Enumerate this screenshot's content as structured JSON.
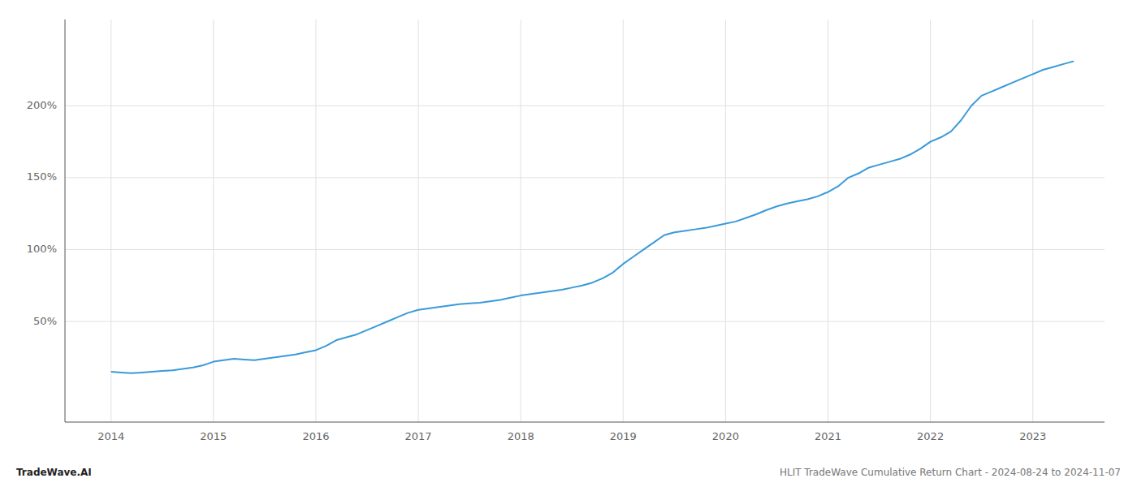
{
  "chart_data": {
    "type": "line",
    "title": "HLIT TradeWave Cumulative Return Chart - 2024-08-24 to 2024-11-07",
    "annotations": [
      "TradeWave.AI"
    ],
    "color": "#3a9ad9",
    "grid": true,
    "xlim": [
      2013.55,
      2023.7
    ],
    "xticks": [
      2014,
      2015,
      2016,
      2017,
      2018,
      2019,
      2020,
      2021,
      2022,
      2023
    ],
    "ylim": [
      -20,
      260
    ],
    "yticks": [
      {
        "value": 50,
        "label": "50%"
      },
      {
        "value": 100,
        "label": "100%"
      },
      {
        "value": 150,
        "label": "150%"
      },
      {
        "value": 200,
        "label": "200%"
      }
    ],
    "x": [
      2014.0,
      2014.1,
      2014.2,
      2014.3,
      2014.4,
      2014.5,
      2014.6,
      2014.7,
      2014.8,
      2014.9,
      2015.0,
      2015.1,
      2015.2,
      2015.3,
      2015.4,
      2015.5,
      2015.6,
      2015.7,
      2015.8,
      2015.9,
      2016.0,
      2016.1,
      2016.2,
      2016.3,
      2016.4,
      2016.5,
      2016.6,
      2016.7,
      2016.8,
      2016.9,
      2017.0,
      2017.1,
      2017.2,
      2017.3,
      2017.4,
      2017.5,
      2017.6,
      2017.7,
      2017.8,
      2017.9,
      2018.0,
      2018.1,
      2018.2,
      2018.3,
      2018.4,
      2018.5,
      2018.6,
      2018.7,
      2018.8,
      2018.9,
      2019.0,
      2019.1,
      2019.2,
      2019.3,
      2019.4,
      2019.5,
      2019.6,
      2019.7,
      2019.8,
      2019.9,
      2020.0,
      2020.1,
      2020.2,
      2020.3,
      2020.4,
      2020.5,
      2020.6,
      2020.7,
      2020.8,
      2020.9,
      2021.0,
      2021.1,
      2021.2,
      2021.3,
      2021.4,
      2021.5,
      2021.6,
      2021.7,
      2021.8,
      2021.9,
      2022.0,
      2022.1,
      2022.2,
      2022.3,
      2022.4,
      2022.5,
      2022.6,
      2022.7,
      2022.8,
      2022.9,
      2023.0,
      2023.1,
      2023.2,
      2023.3,
      2023.4
    ],
    "values": [
      15.0,
      14.5,
      14.0,
      14.5,
      15.0,
      15.5,
      16.0,
      17.0,
      18.0,
      19.5,
      22.0,
      23.0,
      24.0,
      23.5,
      23.0,
      24.0,
      25.0,
      26.0,
      27.0,
      28.5,
      30.0,
      33.0,
      37.0,
      39.0,
      41.0,
      44.0,
      47.0,
      50.0,
      53.0,
      56.0,
      58.0,
      59.0,
      60.0,
      61.0,
      62.0,
      62.5,
      63.0,
      64.0,
      65.0,
      66.5,
      68.0,
      69.0,
      70.0,
      71.0,
      72.0,
      73.5,
      75.0,
      77.0,
      80.0,
      84.0,
      90.0,
      95.0,
      100.0,
      105.0,
      110.0,
      112.0,
      113.0,
      114.0,
      115.0,
      116.5,
      118.0,
      119.5,
      122.0,
      124.5,
      127.5,
      130.0,
      132.0,
      133.5,
      135.0,
      137.0,
      140.0,
      144.0,
      150.0,
      153.0,
      157.0,
      159.0,
      161.0,
      163.0,
      166.0,
      170.0,
      175.0,
      178.0,
      182.0,
      190.0,
      200.0,
      207.0,
      210.0,
      213.0,
      216.0,
      219.0,
      222.0,
      225.0,
      227.0,
      229.0,
      231.0
    ]
  }
}
